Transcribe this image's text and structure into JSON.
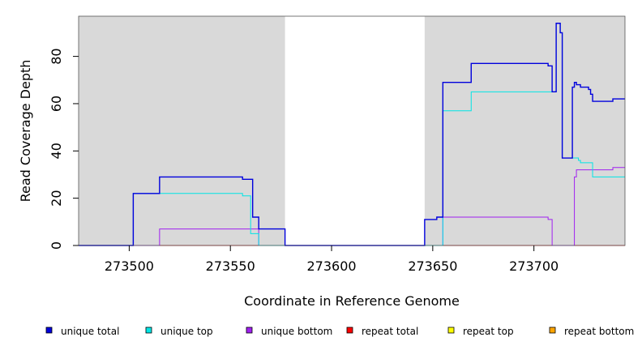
{
  "chart_data": {
    "type": "line",
    "xlabel": "Coordinate in Reference Genome",
    "ylabel": "Read Coverage Depth",
    "xlim": [
      273475,
      273745
    ],
    "ylim": [
      0,
      97
    ],
    "x_ticks": [
      273500,
      273550,
      273600,
      273650,
      273700
    ],
    "x_tick_labels": [
      "273500",
      "273550",
      "273600",
      "273650",
      "273700"
    ],
    "y_ticks": [
      0,
      20,
      40,
      60,
      80
    ],
    "y_tick_labels": [
      "0",
      "20",
      "40",
      "60",
      "80"
    ],
    "grid": false,
    "legend_position": "bottom",
    "shaded_regions": [
      {
        "x": [
          273475,
          273577
        ],
        "color": "#d9d9d9"
      },
      {
        "x": [
          273646,
          273745
        ],
        "color": "#d9d9d9"
      }
    ],
    "series": [
      {
        "name": "unique total",
        "color": "#0000dd",
        "x": [
          273475,
          273502,
          273502,
          273515,
          273515,
          273556,
          273556,
          273561,
          273561,
          273564,
          273564,
          273577,
          273577,
          273646,
          273646,
          273652,
          273652,
          273655,
          273655,
          273669,
          273669,
          273707,
          273707,
          273709,
          273709,
          273711,
          273711,
          273713,
          273713,
          273714,
          273714,
          273719,
          273719,
          273720,
          273720,
          273721,
          273721,
          273723,
          273723,
          273727,
          273727,
          273728,
          273728,
          273729,
          273729,
          273739,
          273739,
          273745
        ],
        "y": [
          0,
          0,
          22,
          22,
          29,
          29,
          28,
          28,
          12,
          12,
          7,
          7,
          0,
          0,
          11,
          11,
          12,
          12,
          69,
          69,
          77,
          77,
          76,
          76,
          65,
          65,
          94,
          94,
          90,
          90,
          37,
          37,
          67,
          67,
          69,
          69,
          68,
          68,
          67,
          67,
          66,
          66,
          64,
          64,
          61,
          61,
          62,
          62
        ]
      },
      {
        "name": "unique top",
        "color": "#00e5e5",
        "x": [
          273475,
          273502,
          273502,
          273556,
          273556,
          273560,
          273560,
          273564,
          273564,
          273655,
          273655,
          273669,
          273669,
          273709,
          273709,
          273711,
          273711,
          273713,
          273713,
          273714,
          273714,
          273720,
          273720,
          273722,
          273722,
          273723,
          273723,
          273725,
          273725,
          273729,
          273729,
          273745
        ],
        "y": [
          0,
          0,
          22,
          22,
          21,
          21,
          5,
          5,
          0,
          0,
          57,
          57,
          65,
          65,
          65,
          65,
          94,
          94,
          90,
          90,
          37,
          37,
          37,
          37,
          36,
          36,
          35,
          35,
          35,
          35,
          29,
          29
        ]
      },
      {
        "name": "unique bottom",
        "color": "#a020f0",
        "x": [
          273475,
          273515,
          273515,
          273564,
          273564,
          273655,
          273655,
          273707,
          273707,
          273709,
          273709,
          273720,
          273720,
          273721,
          273721,
          273739,
          273739,
          273745
        ],
        "y": [
          0,
          0,
          7,
          7,
          0,
          0,
          12,
          12,
          11,
          11,
          0,
          0,
          29,
          29,
          32,
          32,
          33,
          33
        ]
      },
      {
        "name": "repeat total",
        "color": "#ff0000",
        "x": [
          273475,
          273745
        ],
        "y": [
          0,
          0
        ]
      },
      {
        "name": "repeat top",
        "color": "#ffff00",
        "x": [
          273475,
          273745
        ],
        "y": [
          0,
          0
        ]
      },
      {
        "name": "repeat bottom",
        "color": "#ffa500",
        "x": [
          273475,
          273745
        ],
        "y": [
          0,
          0
        ]
      }
    ]
  }
}
